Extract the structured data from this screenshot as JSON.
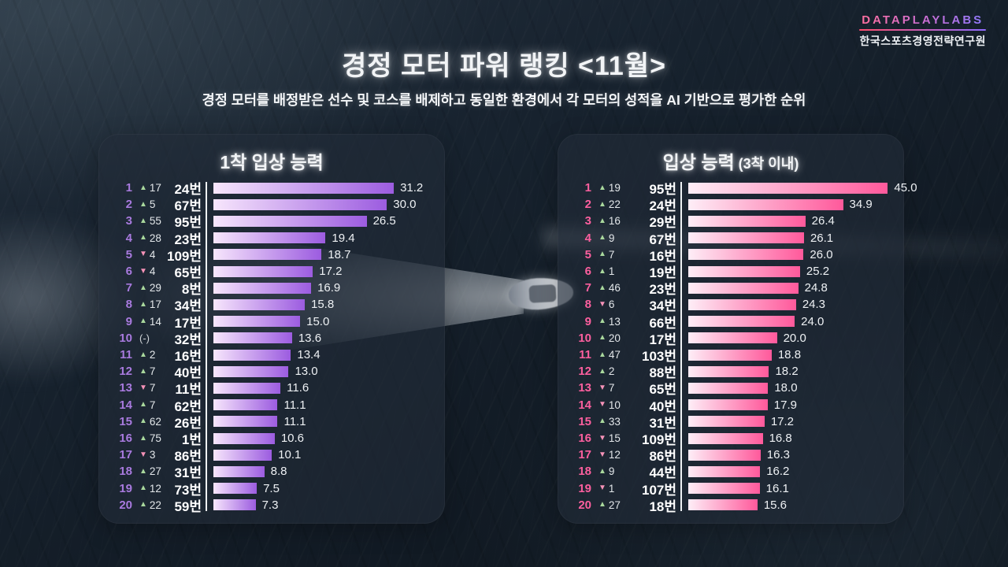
{
  "logo": {
    "brand": "DATAPLAYLABS",
    "org": "한국스포츠경영전략연구원"
  },
  "header": {
    "title": "경정 모터 파워 랭킹 <11월>",
    "subtitle": "경정 모터를 배정받은 선수 및 코스를 배제하고 동일한 환경에서 각 모터의 성적을 AI 기반으로 평가한 순위"
  },
  "colors": {
    "left_rank": "#a87ade",
    "right_rank": "#fb5f9e",
    "up_arrow": "#a9d89d",
    "down_arrow": "#f693b8",
    "left_bar_start": "#f7e6fc",
    "left_bar_end": "#9c5ce0",
    "right_bar_start": "#feeef7",
    "right_bar_end": "#ff599b"
  },
  "chart_data": [
    {
      "type": "bar",
      "title": "1착 입상 능력",
      "title_suffix": "",
      "rank_color": "#a87ade",
      "bar_gradient": [
        "#f7e6fc",
        "#9c5ce0"
      ],
      "xlim": [
        0,
        38
      ],
      "rows": [
        {
          "rank": 1,
          "change": "up",
          "delta": "17",
          "motor": "24번",
          "value": 31.2
        },
        {
          "rank": 2,
          "change": "up",
          "delta": "5",
          "motor": "67번",
          "value": 30.0
        },
        {
          "rank": 3,
          "change": "up",
          "delta": "55",
          "motor": "95번",
          "value": 26.5
        },
        {
          "rank": 4,
          "change": "up",
          "delta": "28",
          "motor": "23번",
          "value": 19.4
        },
        {
          "rank": 5,
          "change": "down",
          "delta": "4",
          "motor": "109번",
          "value": 18.7
        },
        {
          "rank": 6,
          "change": "down",
          "delta": "4",
          "motor": "65번",
          "value": 17.2
        },
        {
          "rank": 7,
          "change": "up",
          "delta": "29",
          "motor": "8번",
          "value": 16.9
        },
        {
          "rank": 8,
          "change": "up",
          "delta": "17",
          "motor": "34번",
          "value": 15.8
        },
        {
          "rank": 9,
          "change": "up",
          "delta": "14",
          "motor": "17번",
          "value": 15.0
        },
        {
          "rank": 10,
          "change": "none",
          "delta": "(-)",
          "motor": "32번",
          "value": 13.6
        },
        {
          "rank": 11,
          "change": "up",
          "delta": "2",
          "motor": "16번",
          "value": 13.4
        },
        {
          "rank": 12,
          "change": "up",
          "delta": "7",
          "motor": "40번",
          "value": 13.0
        },
        {
          "rank": 13,
          "change": "down",
          "delta": "7",
          "motor": "11번",
          "value": 11.6
        },
        {
          "rank": 14,
          "change": "up",
          "delta": "7",
          "motor": "62번",
          "value": 11.1
        },
        {
          "rank": 15,
          "change": "up",
          "delta": "62",
          "motor": "26번",
          "value": 11.1
        },
        {
          "rank": 16,
          "change": "up",
          "delta": "75",
          "motor": "1번",
          "value": 10.6
        },
        {
          "rank": 17,
          "change": "down",
          "delta": "3",
          "motor": "86번",
          "value": 10.1
        },
        {
          "rank": 18,
          "change": "up",
          "delta": "27",
          "motor": "31번",
          "value": 8.8
        },
        {
          "rank": 19,
          "change": "up",
          "delta": "12",
          "motor": "73번",
          "value": 7.5
        },
        {
          "rank": 20,
          "change": "up",
          "delta": "22",
          "motor": "59번",
          "value": 7.3
        }
      ]
    },
    {
      "type": "bar",
      "title": "입상 능력",
      "title_suffix": " (3착 이내)",
      "rank_color": "#fb5f9e",
      "bar_gradient": [
        "#feeef7",
        "#ff599b"
      ],
      "xlim": [
        0,
        46
      ],
      "rows": [
        {
          "rank": 1,
          "change": "up",
          "delta": "19",
          "motor": "95번",
          "value": 45.0
        },
        {
          "rank": 2,
          "change": "up",
          "delta": "22",
          "motor": "24번",
          "value": 34.9
        },
        {
          "rank": 3,
          "change": "up",
          "delta": "16",
          "motor": "29번",
          "value": 26.4
        },
        {
          "rank": 4,
          "change": "up",
          "delta": "9",
          "motor": "67번",
          "value": 26.1
        },
        {
          "rank": 5,
          "change": "up",
          "delta": "7",
          "motor": "16번",
          "value": 26.0
        },
        {
          "rank": 6,
          "change": "up",
          "delta": "1",
          "motor": "19번",
          "value": 25.2
        },
        {
          "rank": 7,
          "change": "up",
          "delta": "46",
          "motor": "23번",
          "value": 24.8
        },
        {
          "rank": 8,
          "change": "down",
          "delta": "6",
          "motor": "34번",
          "value": 24.3
        },
        {
          "rank": 9,
          "change": "up",
          "delta": "13",
          "motor": "66번",
          "value": 24.0
        },
        {
          "rank": 10,
          "change": "up",
          "delta": "20",
          "motor": "17번",
          "value": 20.0
        },
        {
          "rank": 11,
          "change": "up",
          "delta": "47",
          "motor": "103번",
          "value": 18.8
        },
        {
          "rank": 12,
          "change": "up",
          "delta": "2",
          "motor": "88번",
          "value": 18.2
        },
        {
          "rank": 13,
          "change": "down",
          "delta": "7",
          "motor": "65번",
          "value": 18.0
        },
        {
          "rank": 14,
          "change": "down",
          "delta": "10",
          "motor": "40번",
          "value": 17.9
        },
        {
          "rank": 15,
          "change": "up",
          "delta": "33",
          "motor": "31번",
          "value": 17.2
        },
        {
          "rank": 16,
          "change": "down",
          "delta": "15",
          "motor": "109번",
          "value": 16.8
        },
        {
          "rank": 17,
          "change": "down",
          "delta": "12",
          "motor": "86번",
          "value": 16.3
        },
        {
          "rank": 18,
          "change": "up",
          "delta": "9",
          "motor": "44번",
          "value": 16.2
        },
        {
          "rank": 19,
          "change": "down",
          "delta": "1",
          "motor": "107번",
          "value": 16.1
        },
        {
          "rank": 20,
          "change": "up",
          "delta": "27",
          "motor": "18번",
          "value": 15.6
        }
      ]
    }
  ]
}
